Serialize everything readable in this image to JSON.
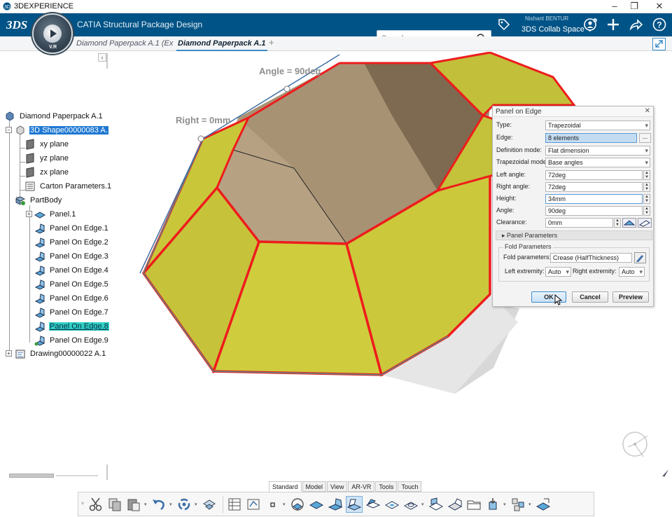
{
  "window": {
    "title": "3DEXPERIENCE",
    "controls": [
      "–",
      "❐",
      "✕"
    ]
  },
  "header": {
    "brand": "3DS",
    "app_name": "CATIA Structural Package Design",
    "compass_labels": [
      "V.R"
    ],
    "search_placeholder": "Search",
    "user_name": "Nishant BENTUR",
    "collab_space": "3DS Collab Space ⌄"
  },
  "tabs": [
    {
      "label": "Diamond Paperpack A.1 (Ex",
      "active": false
    },
    {
      "label": "Diamond Paperpack A.1",
      "active": true
    }
  ],
  "tab_add": "+",
  "tree_collapse": "‹",
  "viewport": {
    "dim_angle": "Angle = 90deg",
    "dim_right": "Right = 0mm"
  },
  "tree": [
    {
      "label": "Diamond Paperpack A.1",
      "icon": "product-icon"
    },
    {
      "label": "3D Shape00000083 A.",
      "icon": "shape-icon",
      "selected": true
    },
    {
      "label": "xy plane",
      "icon": "plane-icon"
    },
    {
      "label": "yz plane",
      "icon": "plane-icon"
    },
    {
      "label": "zx plane",
      "icon": "plane-icon"
    },
    {
      "label": "Carton Parameters.1",
      "icon": "parameters-icon"
    },
    {
      "label": "PartBody",
      "icon": "partbody-icon"
    },
    {
      "label": "Panel.1",
      "icon": "panel-icon"
    },
    {
      "label": "Panel On Edge.1",
      "icon": "panel-on-edge-icon"
    },
    {
      "label": "Panel On Edge.2",
      "icon": "panel-on-edge-icon"
    },
    {
      "label": "Panel On Edge.3",
      "icon": "panel-on-edge-icon"
    },
    {
      "label": "Panel On Edge.4",
      "icon": "panel-on-edge-icon"
    },
    {
      "label": "Panel On Edge.5",
      "icon": "panel-on-edge-icon"
    },
    {
      "label": "Panel On Edge.6",
      "icon": "panel-on-edge-icon"
    },
    {
      "label": "Panel On Edge.7",
      "icon": "panel-on-edge-icon"
    },
    {
      "label": "Panel On Edge.8",
      "icon": "panel-on-edge-icon",
      "highlighted": true
    },
    {
      "label": "Panel On Edge.9",
      "icon": "panel-on-edge-icon"
    },
    {
      "label": "Drawing00000022 A.1",
      "icon": "drawing-icon"
    }
  ],
  "dialog": {
    "title": "Panel on Edge",
    "close": "✕",
    "type_label": "Type:",
    "type_value": "Trapezoidal",
    "edge_label": "Edge:",
    "edge_value": "8 elements",
    "edge_btn": "...",
    "defmode_label": "Definition mode:",
    "defmode_value": "Flat dimension",
    "trapmode_label": "Trapezoidal mode:",
    "trapmode_value": "Base angles",
    "left_angle_label": "Left angle:",
    "left_angle_value": "72deg",
    "right_angle_label": "Right angle:",
    "right_angle_value": "72deg",
    "height_label": "Height:",
    "height_value": "34mm",
    "angle_label": "Angle:",
    "angle_value": "90deg",
    "clearance_label": "Clearance:",
    "clearance_value": "0mm",
    "panel_params": "Panel Parameters",
    "fold_group": "Fold Parameters",
    "fold_params_label": "Fold parameters:",
    "fold_params_value": "Crease (HalfThickness)",
    "left_ext_label": "Left extremity:",
    "left_ext_value": "Auto",
    "right_ext_label": "Right extremity:",
    "right_ext_value": "Auto",
    "ok": "OK",
    "cancel": "Cancel",
    "preview": "Preview"
  },
  "workshop_tabs": [
    {
      "label": "Standard",
      "active": true
    },
    {
      "label": "Model"
    },
    {
      "label": "View"
    },
    {
      "label": "AR-VR"
    },
    {
      "label": "Tools"
    },
    {
      "label": "Touch"
    }
  ],
  "colors": {
    "header_bg": "#005386",
    "accent": "#3b8cc8",
    "panel_face": "#c9c63a",
    "fold_edge": "#ee1c1c",
    "interior": "#a89274",
    "selection": "#1e78d2",
    "highlight": "#2fd0c3"
  }
}
